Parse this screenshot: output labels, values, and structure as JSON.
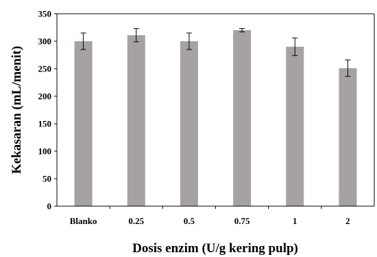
{
  "chart_data": {
    "type": "bar",
    "title": "",
    "xlabel": "Dosis enzim (U/g kering pulp)",
    "ylabel": "Kekasaran (mL/menit)",
    "categories": [
      "Blanko",
      "0.25",
      "0.5",
      "0.75",
      "1",
      "2"
    ],
    "values": [
      300,
      311,
      300,
      320,
      290,
      251
    ],
    "errors": [
      15,
      12,
      15,
      3,
      16,
      15
    ],
    "ylim": [
      0,
      350
    ],
    "yticks": [
      "0",
      "50",
      "100",
      "150",
      "200",
      "250",
      "300",
      "350"
    ],
    "grid": false,
    "legend": "none",
    "bar_color": "#a6a2a2",
    "error_bar_color": "#000000"
  }
}
